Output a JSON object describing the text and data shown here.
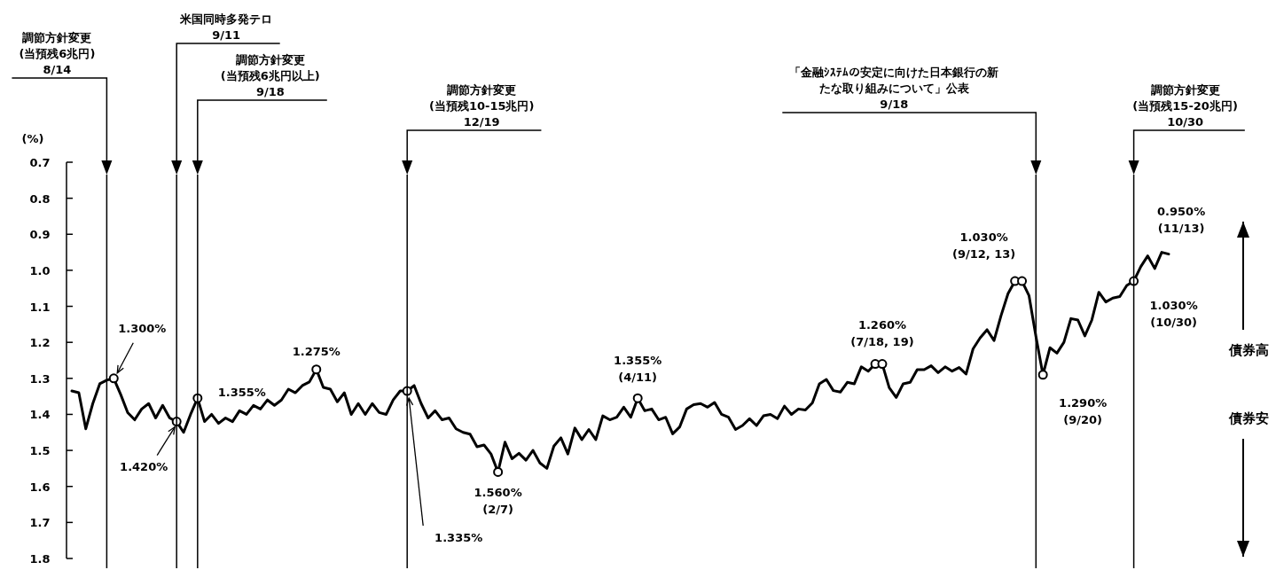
{
  "chart_data": {
    "type": "line",
    "ylabel": "(%)",
    "tick_labels": "y",
    "categories": [
      null,
      null,
      null,
      null,
      null,
      null,
      null,
      null,
      null,
      null,
      null,
      null,
      null,
      null,
      null,
      null,
      null,
      null,
      null,
      null,
      null,
      null,
      null,
      null,
      null,
      null,
      null,
      null,
      null,
      null,
      null,
      null,
      null,
      null,
      null,
      null,
      null,
      null,
      null,
      null,
      null,
      null,
      null,
      null,
      null,
      null,
      null,
      null,
      null,
      null,
      null,
      null,
      null,
      null,
      null,
      null,
      null,
      null,
      null,
      null,
      null,
      null,
      null,
      null,
      null,
      null,
      null,
      null,
      null,
      null,
      null,
      null,
      null,
      null,
      null,
      null,
      null,
      null,
      null,
      null,
      null,
      null,
      null,
      null,
      null,
      null,
      null,
      null,
      null,
      null,
      null,
      null,
      null,
      null,
      null,
      null,
      null,
      null,
      null,
      null,
      null,
      null,
      null,
      null,
      null,
      null,
      null,
      null,
      null,
      null,
      null,
      null,
      null,
      null,
      null,
      null,
      null,
      null,
      null,
      null,
      null,
      null,
      null,
      null,
      null,
      null,
      null,
      null,
      null,
      null,
      null,
      null,
      null,
      null,
      null,
      null,
      null,
      null,
      null,
      null,
      null,
      null,
      null,
      null,
      null,
      null,
      null,
      null,
      null,
      null,
      null,
      null,
      null,
      null,
      null,
      null,
      null,
      null
    ],
    "ylim": [
      1.8,
      0.7
    ],
    "yticks": [
      {
        "value": 0.7,
        "label": "0.7"
      },
      {
        "value": 0.8,
        "label": "0.8"
      },
      {
        "value": 0.9,
        "label": "0.9"
      },
      {
        "value": 1.0,
        "label": "1.0"
      },
      {
        "value": 1.1,
        "label": "1.1"
      },
      {
        "value": 1.2,
        "label": "1.2"
      },
      {
        "value": 1.3,
        "label": "1.3"
      },
      {
        "value": 1.4,
        "label": "1.4"
      },
      {
        "value": 1.5,
        "label": "1.5"
      },
      {
        "value": 1.6,
        "label": "1.6"
      },
      {
        "value": 1.7,
        "label": "1.7"
      },
      {
        "value": 1.8,
        "label": "1.8"
      }
    ],
    "series": [
      {
        "type": "line",
        "color": "#000000",
        "values": [
          1.335,
          1.34,
          1.44,
          1.37,
          1.315,
          1.305,
          1.3,
          1.345,
          1.395,
          1.415,
          1.385,
          1.37,
          1.41,
          1.375,
          1.41,
          1.42,
          1.45,
          1.4,
          1.355,
          1.42,
          1.4,
          1.425,
          1.41,
          1.42,
          1.39,
          1.4,
          1.375,
          1.385,
          1.36,
          1.375,
          1.36,
          1.33,
          1.34,
          1.32,
          1.31,
          1.275,
          1.325,
          1.33,
          1.365,
          1.34,
          1.4,
          1.37,
          1.4,
          1.37,
          1.395,
          1.4,
          1.36,
          1.335,
          1.335,
          1.32,
          1.37,
          1.41,
          1.39,
          1.415,
          1.41,
          1.44,
          1.45,
          1.455,
          1.49,
          1.485,
          1.51,
          1.56,
          1.477,
          1.523,
          1.508,
          1.527,
          1.5,
          1.535,
          1.55,
          1.488,
          1.465,
          1.51,
          1.438,
          1.47,
          1.442,
          1.47,
          1.404,
          1.415,
          1.408,
          1.38,
          1.408,
          1.355,
          1.39,
          1.385,
          1.415,
          1.408,
          1.454,
          1.435,
          1.385,
          1.373,
          1.37,
          1.38,
          1.367,
          1.4,
          1.408,
          1.442,
          1.431,
          1.412,
          1.431,
          1.404,
          1.4,
          1.412,
          1.377,
          1.4,
          1.385,
          1.388,
          1.368,
          1.315,
          1.303,
          1.334,
          1.338,
          1.311,
          1.315,
          1.268,
          1.28,
          1.26,
          1.26,
          1.326,
          1.353,
          1.315,
          1.311,
          1.276,
          1.276,
          1.265,
          1.284,
          1.268,
          1.28,
          1.27,
          1.288,
          1.218,
          1.188,
          1.165,
          1.195,
          1.126,
          1.065,
          1.03,
          1.03,
          1.07,
          1.184,
          1.29,
          1.215,
          1.23,
          1.2,
          1.134,
          1.138,
          1.182,
          1.138,
          1.061,
          1.088,
          1.077,
          1.073,
          1.042,
          1.03,
          0.99,
          0.96,
          0.995,
          0.95,
          0.955
        ]
      },
      {
        "type": "scatter",
        "marker": "circle",
        "color": "#000000",
        "values": [
          null,
          null,
          null,
          null,
          null,
          null,
          1.3,
          null,
          null,
          null,
          null,
          null,
          null,
          null,
          null,
          1.42,
          null,
          null,
          1.355,
          null,
          null,
          null,
          null,
          null,
          null,
          null,
          null,
          null,
          null,
          null,
          null,
          null,
          null,
          null,
          null,
          1.275,
          null,
          null,
          null,
          null,
          null,
          null,
          null,
          null,
          null,
          null,
          null,
          null,
          1.335,
          null,
          null,
          null,
          null,
          null,
          null,
          null,
          null,
          null,
          null,
          null,
          null,
          1.56,
          null,
          null,
          null,
          null,
          null,
          null,
          null,
          null,
          null,
          null,
          null,
          null,
          null,
          null,
          null,
          null,
          null,
          null,
          null,
          1.355,
          null,
          null,
          null,
          null,
          null,
          null,
          null,
          null,
          null,
          null,
          null,
          null,
          null,
          null,
          null,
          null,
          null,
          null,
          null,
          null,
          null,
          null,
          null,
          null,
          null,
          null,
          null,
          null,
          null,
          null,
          null,
          null,
          null,
          1.26,
          1.26,
          null,
          null,
          null,
          null,
          null,
          null,
          null,
          null,
          null,
          null,
          null,
          null,
          null,
          null,
          null,
          null,
          null,
          null,
          1.03,
          1.03,
          null,
          null,
          1.29,
          null,
          null,
          null,
          null,
          null,
          null,
          null,
          null,
          null,
          null,
          null,
          null,
          1.03,
          null,
          null,
          null,
          null,
          null
        ]
      }
    ],
    "annotations": [
      "調節方針変更\n(当預残6兆円)\n8/14",
      "米国同時多発テロ\n9/11",
      "調節方針変更\n(当預残6兆円以上)\n9/18",
      "調節方針変更\n(当預残10-15兆円)\n12/19",
      "「金融ｼｽﾃﾑの安定に向けた日本銀行の新たな取り組みについて」公表\n9/18",
      "調節方針変更\n(当預残15-20兆円)\n10/30",
      "1.300%",
      "1.420%",
      "1.355%",
      "1.275%",
      "1.335%",
      "1.560%\n(2/7)",
      "1.355%\n(4/11)",
      "1.260%\n(7/18, 19)",
      "1.030%\n(9/12, 13)",
      "1.290%\n(9/20)",
      "1.030%\n(10/30)",
      "0.950%\n(11/13)",
      "債券高",
      "債券安"
    ]
  }
}
